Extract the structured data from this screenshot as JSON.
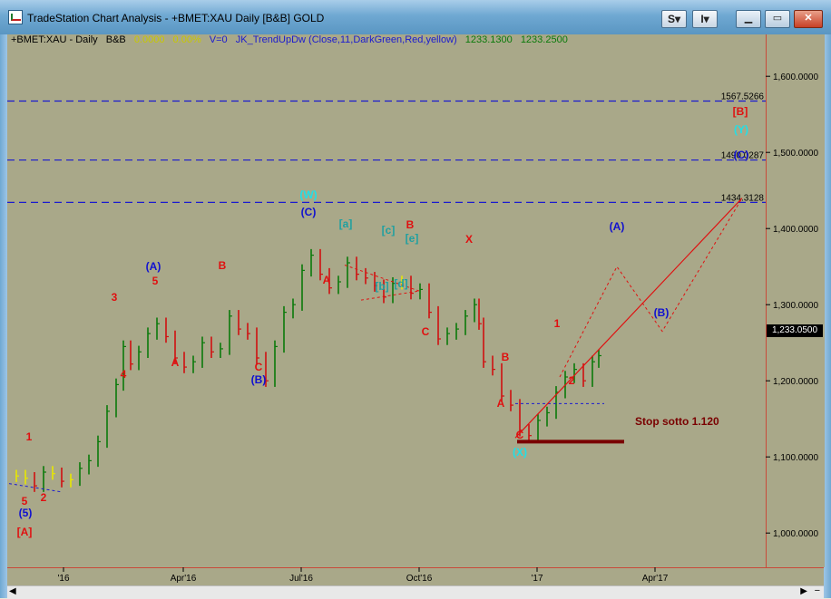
{
  "window": {
    "title": "TradeStation Chart Analysis - +BMET:XAU Daily [B&B] GOLD",
    "s_button": "S",
    "i_button": "I"
  },
  "header": {
    "symbol": "+BMET:XAU - Daily",
    "bb": "B&B",
    "change": "0.0000",
    "change_pct": "0.00%",
    "volume": "V=0",
    "study": "JK_TrendUpDw (Close,11,DarkGreen,Red,yellow)",
    "bid": "1233.1300",
    "ask": "1233.2500"
  },
  "price_axis": {
    "ticks": [
      "1,600.0000",
      "1,500.0000",
      "1,400.0000",
      "1,300.0000",
      "1,200.0000",
      "1,100.0000",
      "1,000.0000"
    ],
    "tick_values": [
      1600,
      1500,
      1400,
      1300,
      1200,
      1100,
      1000
    ],
    "last_price": "1,233.0500"
  },
  "date_axis": {
    "labels": [
      "'16",
      "Apr'16",
      "Jul'16",
      "Oct'16",
      "'17",
      "Apr'17"
    ]
  },
  "levels": [
    {
      "label": "1567.5266",
      "value": 1567.5266
    },
    {
      "label": "1490.0287",
      "value": 1490.0287
    },
    {
      "label": "1434.3128",
      "value": 1434.3128
    }
  ],
  "annotations": {
    "stop": "Stop sotto 1.120",
    "waves": [
      {
        "text": "1",
        "color": "#e01010"
      },
      {
        "text": "5",
        "color": "#e01010"
      },
      {
        "text": "2",
        "color": "#e01010"
      },
      {
        "text": "(5)",
        "color": "#1010d0"
      },
      {
        "text": "[A]",
        "color": "#e01010"
      },
      {
        "text": "3",
        "color": "#e01010"
      },
      {
        "text": "4",
        "color": "#e01010"
      },
      {
        "text": "(A)",
        "color": "#1010d0"
      },
      {
        "text": "5",
        "color": "#e01010"
      },
      {
        "text": "A",
        "color": "#e01010"
      },
      {
        "text": "B",
        "color": "#e01010"
      },
      {
        "text": "C",
        "color": "#e01010"
      },
      {
        "text": "(B)",
        "color": "#1010d0"
      },
      {
        "text": "(W)",
        "color": "#20e0e8"
      },
      {
        "text": "(C)",
        "color": "#1010d0"
      },
      {
        "text": "A",
        "color": "#e01010"
      },
      {
        "text": "[a]",
        "color": "#20a0a0"
      },
      {
        "text": "[c]",
        "color": "#20a0a0"
      },
      {
        "text": "[e]",
        "color": "#20a0a0"
      },
      {
        "text": "B",
        "color": "#e01010"
      },
      {
        "text": "[b]",
        "color": "#20a0a0"
      },
      {
        "text": "[d]",
        "color": "#20a0a0"
      },
      {
        "text": "X",
        "color": "#e01010"
      },
      {
        "text": "C",
        "color": "#e01010"
      },
      {
        "text": "B",
        "color": "#e01010"
      },
      {
        "text": "A",
        "color": "#e01010"
      },
      {
        "text": "C",
        "color": "#e01010"
      },
      {
        "text": "(X)",
        "color": "#20e0e8"
      },
      {
        "text": "1",
        "color": "#e01010"
      },
      {
        "text": "2",
        "color": "#e01010"
      },
      {
        "text": "(A)",
        "color": "#1010d0"
      },
      {
        "text": "(B)",
        "color": "#1010d0"
      },
      {
        "text": "[B]",
        "color": "#e01010"
      },
      {
        "text": "(Y)",
        "color": "#20e0e8"
      },
      {
        "text": "(C)",
        "color": "#1010d0"
      }
    ]
  },
  "colors": {
    "chart_bg": "#a9a889",
    "up_bar": "#0a7a0a",
    "down_bar": "#d01010",
    "neutral_bar": "#e8e800",
    "level_line": "#1a1ad0",
    "projection": "#e01010",
    "stop_line": "#7a0000"
  },
  "chart_data": {
    "type": "ohlc",
    "x": [
      "2015-12",
      "2016-01",
      "2016-02",
      "2016-03",
      "2016-04",
      "2016-05",
      "2016-06",
      "2016-07",
      "2016-08",
      "2016-09",
      "2016-10",
      "2016-11",
      "2016-12",
      "2017-01"
    ],
    "close": [
      1062,
      1118,
      1232,
      1235,
      1292,
      1215,
      1320,
      1350,
      1310,
      1318,
      1270,
      1178,
      1148,
      1210
    ],
    "ylim": [
      955,
      1655
    ],
    "last": 1233.05
  }
}
